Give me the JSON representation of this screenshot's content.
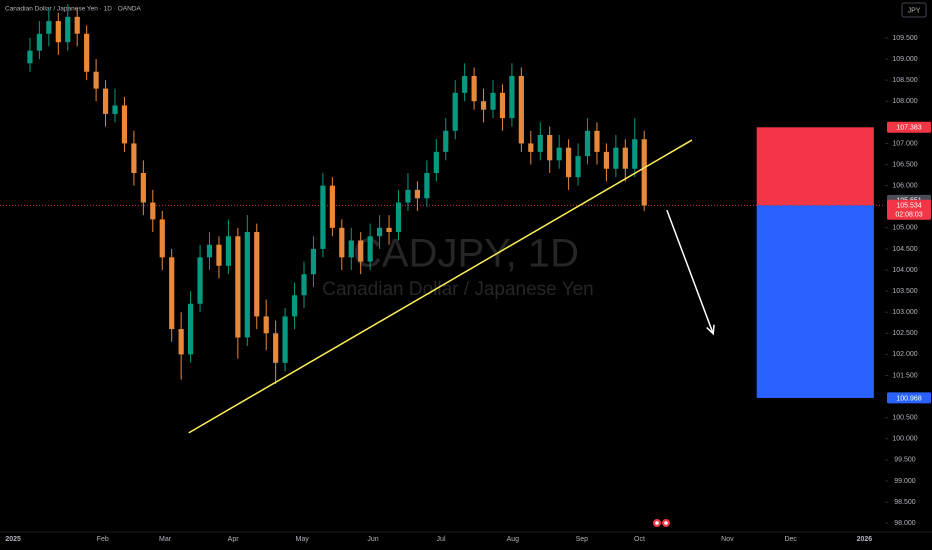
{
  "chart_data": {
    "type": "candlestick",
    "title": "Canadian Dollar / Japanese Yen · 1D · OANDA",
    "watermark": "CADJPY, 1D",
    "watermark_subtitle": "Canadian Dollar / Japanese Yen",
    "currency": "JPY",
    "up_color": "#089981",
    "down_color": "#e8883a",
    "ohlc": [
      [
        108.9,
        109.5,
        108.7,
        109.2
      ],
      [
        109.2,
        109.9,
        109.0,
        109.6
      ],
      [
        109.6,
        110.2,
        109.3,
        109.9
      ],
      [
        109.9,
        110.1,
        109.1,
        109.4
      ],
      [
        109.4,
        110.3,
        109.2,
        110.0
      ],
      [
        110.0,
        110.2,
        109.3,
        109.6
      ],
      [
        109.6,
        109.8,
        108.5,
        108.7
      ],
      [
        108.7,
        109.0,
        108.0,
        108.3
      ],
      [
        108.3,
        108.5,
        107.4,
        107.7
      ],
      [
        107.7,
        108.3,
        107.5,
        107.9
      ],
      [
        107.9,
        108.1,
        106.8,
        107.0
      ],
      [
        107.0,
        107.3,
        106.0,
        106.3
      ],
      [
        106.3,
        106.6,
        105.3,
        105.6
      ],
      [
        105.6,
        105.9,
        104.9,
        105.2
      ],
      [
        105.2,
        105.4,
        104.0,
        104.3
      ],
      [
        104.3,
        104.5,
        102.3,
        102.6
      ],
      [
        102.6,
        103.0,
        101.4,
        102.0
      ],
      [
        102.0,
        103.5,
        101.8,
        103.2
      ],
      [
        103.2,
        104.6,
        103.0,
        104.3
      ],
      [
        104.3,
        104.9,
        104.0,
        104.6
      ],
      [
        104.6,
        104.8,
        103.8,
        104.1
      ],
      [
        104.1,
        105.2,
        103.9,
        104.8
      ],
      [
        104.8,
        105.0,
        101.9,
        102.4
      ],
      [
        102.4,
        105.3,
        102.2,
        104.9
      ],
      [
        104.9,
        105.1,
        102.6,
        102.9
      ],
      [
        102.9,
        103.3,
        102.1,
        102.5
      ],
      [
        102.5,
        102.8,
        101.3,
        101.8
      ],
      [
        101.8,
        103.1,
        101.6,
        102.9
      ],
      [
        102.9,
        103.7,
        102.6,
        103.4
      ],
      [
        103.4,
        104.2,
        103.1,
        103.9
      ],
      [
        103.9,
        104.8,
        103.6,
        104.5
      ],
      [
        104.5,
        106.3,
        104.3,
        106.0
      ],
      [
        106.0,
        106.2,
        104.8,
        105.0
      ],
      [
        105.0,
        105.2,
        104.0,
        104.3
      ],
      [
        104.3,
        105.0,
        104.0,
        104.7
      ],
      [
        104.7,
        104.9,
        103.9,
        104.2
      ],
      [
        104.2,
        105.1,
        104.0,
        104.8
      ],
      [
        104.8,
        105.3,
        104.5,
        105.0
      ],
      [
        105.0,
        105.3,
        104.6,
        104.9
      ],
      [
        104.9,
        105.9,
        104.7,
        105.6
      ],
      [
        105.6,
        106.3,
        105.4,
        105.9
      ],
      [
        105.9,
        106.1,
        105.4,
        105.7
      ],
      [
        105.7,
        106.6,
        105.5,
        106.3
      ],
      [
        106.3,
        107.1,
        106.1,
        106.8
      ],
      [
        106.8,
        107.6,
        106.6,
        107.3
      ],
      [
        107.3,
        108.5,
        107.1,
        108.2
      ],
      [
        108.2,
        108.9,
        108.0,
        108.6
      ],
      [
        108.6,
        108.8,
        107.8,
        108.0
      ],
      [
        108.0,
        108.3,
        107.5,
        107.8
      ],
      [
        107.8,
        108.5,
        107.6,
        108.2
      ],
      [
        108.2,
        108.4,
        107.3,
        107.6
      ],
      [
        107.6,
        108.9,
        107.4,
        108.6
      ],
      [
        108.6,
        108.8,
        106.8,
        107.0
      ],
      [
        107.0,
        107.3,
        106.5,
        106.8
      ],
      [
        106.8,
        107.5,
        106.6,
        107.2
      ],
      [
        107.2,
        107.4,
        106.3,
        106.6
      ],
      [
        106.6,
        107.2,
        106.4,
        106.9
      ],
      [
        106.9,
        107.1,
        105.9,
        106.2
      ],
      [
        106.2,
        107.0,
        106.0,
        106.7
      ],
      [
        106.7,
        107.6,
        106.5,
        107.3
      ],
      [
        107.3,
        107.5,
        106.5,
        106.8
      ],
      [
        106.8,
        107.0,
        106.1,
        106.4
      ],
      [
        106.4,
        107.2,
        106.2,
        106.9
      ],
      [
        106.9,
        107.1,
        106.1,
        106.4
      ],
      [
        106.4,
        107.6,
        106.2,
        107.1
      ],
      [
        107.1,
        107.3,
        105.4,
        105.53
      ]
    ],
    "xlim": [
      -3.17,
      90.48
    ],
    "xticks": [
      {
        "value": -2.6,
        "label": "2025"
      },
      {
        "value": 7.7,
        "label": "Feb"
      },
      {
        "value": 14.3,
        "label": "Mar"
      },
      {
        "value": 21.5,
        "label": "Apr"
      },
      {
        "value": 28.8,
        "label": "May"
      },
      {
        "value": 36.3,
        "label": "Jun"
      },
      {
        "value": 43.5,
        "label": "Jul"
      },
      {
        "value": 51.1,
        "label": "Aug"
      },
      {
        "value": 58.4,
        "label": "Sep"
      },
      {
        "value": 64.5,
        "label": "Oct"
      },
      {
        "value": 73.8,
        "label": "Nov"
      },
      {
        "value": 80.5,
        "label": "Dec"
      },
      {
        "value": 88.3,
        "label": "2026"
      }
    ],
    "ylim": [
      97.79,
      110.4
    ],
    "yticks": [
      {
        "value": 98,
        "label": "98.000"
      },
      {
        "value": 98.5,
        "label": "98.500"
      },
      {
        "value": 99,
        "label": "99.000"
      },
      {
        "value": 99.5,
        "label": "99.500"
      },
      {
        "value": 100,
        "label": "100.000"
      },
      {
        "value": 100.5,
        "label": "100.500"
      },
      {
        "value": 101.5,
        "label": "101.500"
      },
      {
        "value": 102,
        "label": "102.000"
      },
      {
        "value": 102.5,
        "label": "102.500"
      },
      {
        "value": 103,
        "label": "103.000"
      },
      {
        "value": 103.5,
        "label": "103.500"
      },
      {
        "value": 104,
        "label": "104.000"
      },
      {
        "value": 104.5,
        "label": "104.500"
      },
      {
        "value": 105,
        "label": "105.000"
      },
      {
        "value": 106,
        "label": "106.000"
      },
      {
        "value": 106.5,
        "label": "106.500"
      },
      {
        "value": 107,
        "label": "107.000"
      },
      {
        "value": 108,
        "label": "108.000"
      },
      {
        "value": 108.5,
        "label": "108.500"
      },
      {
        "value": 109,
        "label": "109.000"
      },
      {
        "value": 109.5,
        "label": "109.500"
      }
    ],
    "trendline": {
      "x": [
        16.8,
        70.05
      ],
      "y": [
        100.14,
        107.08
      ],
      "color": "#ffee58"
    },
    "arrow": {
      "x": [
        67.4,
        72.3
      ],
      "y": [
        105.42,
        102.49
      ],
      "color": "#ffffff"
    },
    "position_box": {
      "x": [
        76.9,
        89.3
      ],
      "stop": 107.383,
      "entry": 105.534,
      "target": 100.968,
      "loss_color": "#f23645",
      "profit_color": "#2962ff"
    },
    "last_price": 105.534,
    "last_price_color": "#f23645",
    "countdown": "02:08:03",
    "price_labels": [
      {
        "value": 107.383,
        "color": "#f23645"
      },
      {
        "value": 105.651,
        "color": "#4a4d57"
      },
      {
        "value": 100.968,
        "color": "#2962ff"
      }
    ]
  }
}
